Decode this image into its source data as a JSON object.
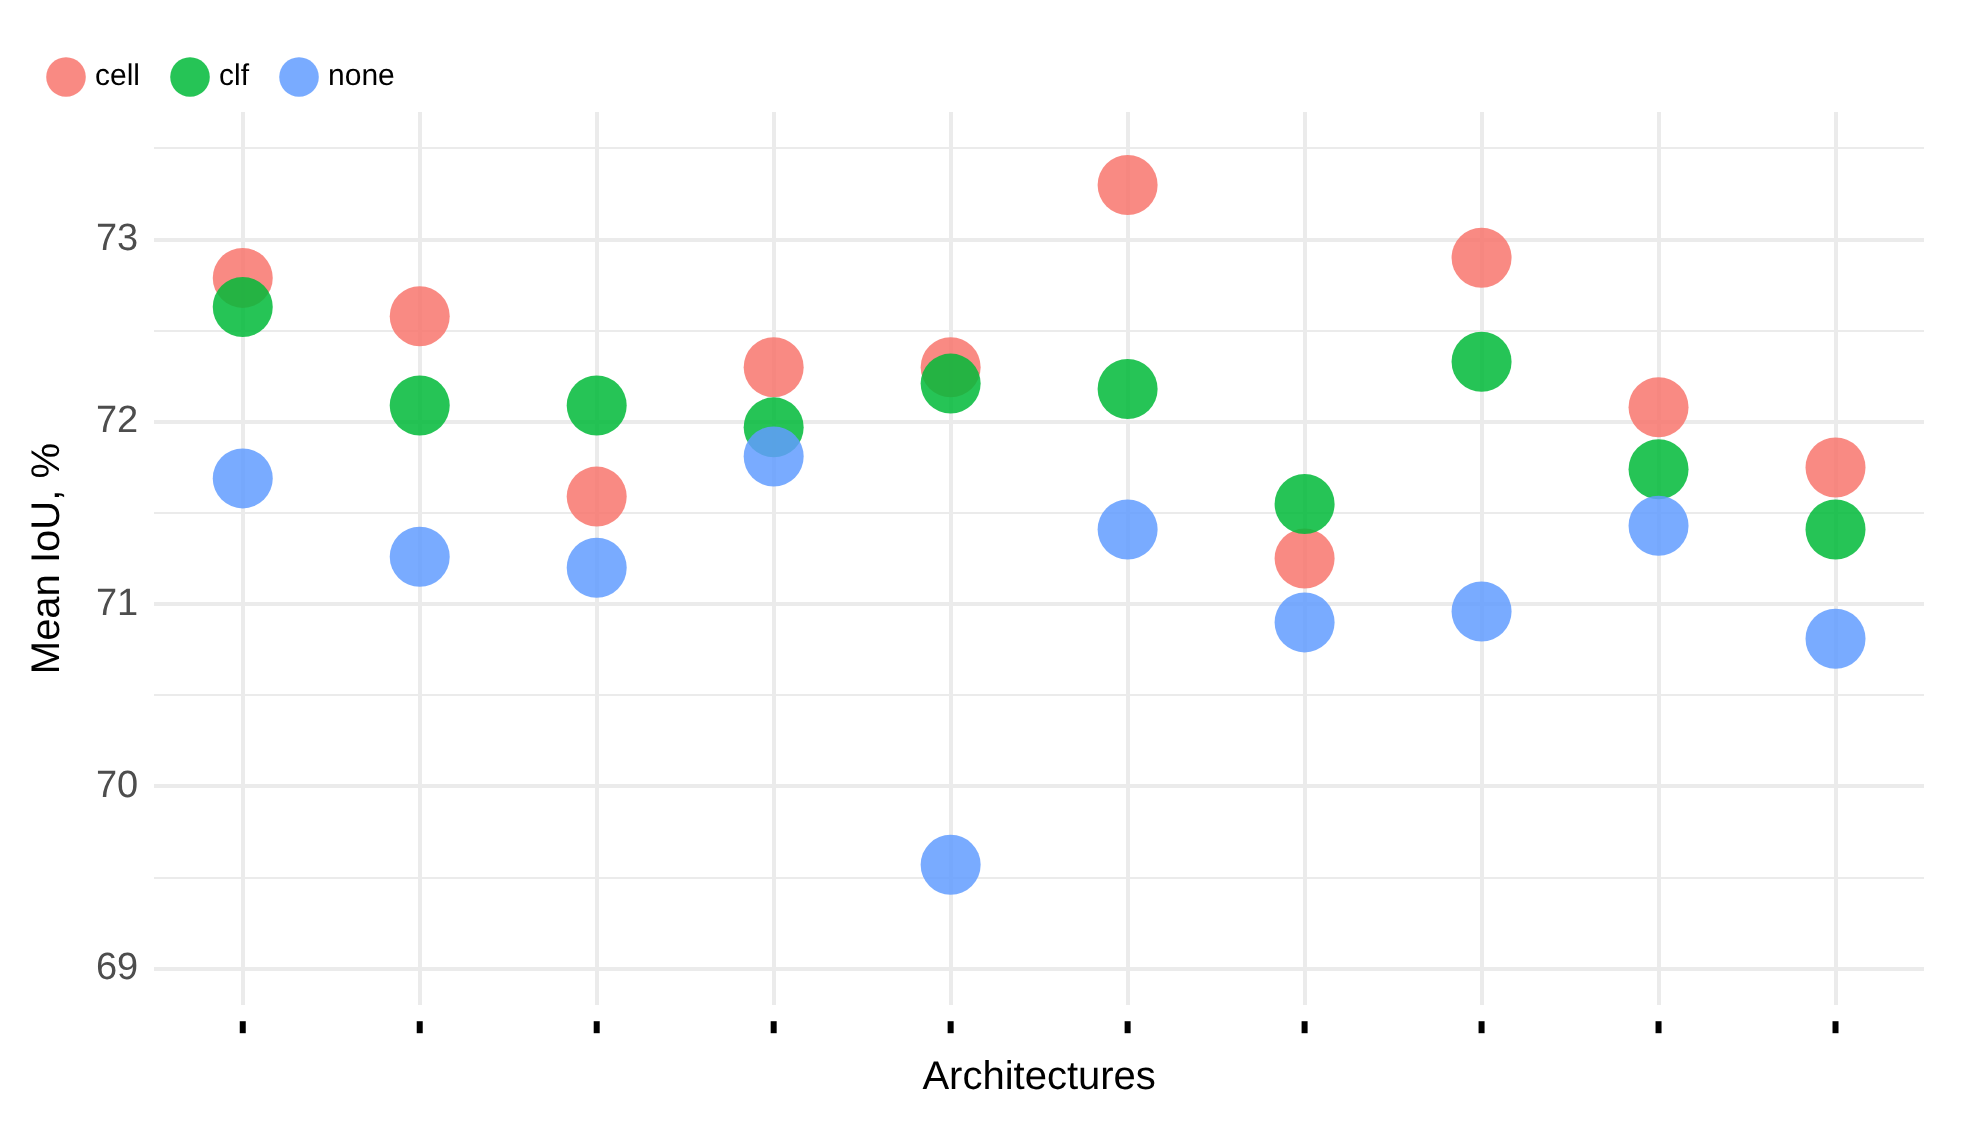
{
  "chart_data": {
    "type": "scatter",
    "xlabel": "Architectures",
    "ylabel": "Mean IoU, %",
    "categories": [
      null,
      null,
      null,
      null,
      null,
      null,
      null,
      null,
      null,
      null
    ],
    "series": [
      {
        "name": "cell",
        "color": "#f8766d",
        "values": [
          72.79,
          72.58,
          71.59,
          72.3,
          72.3,
          73.3,
          71.25,
          72.9,
          72.08,
          71.75
        ]
      },
      {
        "name": "clf",
        "color": "#00ba38",
        "values": [
          72.63,
          72.09,
          72.09,
          71.97,
          72.21,
          72.18,
          71.55,
          72.33,
          71.74,
          71.41
        ]
      },
      {
        "name": "none",
        "color": "#619cff",
        "values": [
          71.69,
          71.26,
          71.2,
          71.81,
          69.57,
          71.41,
          70.9,
          70.96,
          71.43,
          70.81
        ]
      }
    ],
    "ylim": [
      68.8,
      73.7
    ],
    "yticks": [
      69,
      {
        "value": 69.5,
        "label": null
      },
      70,
      {
        "value": 70.5,
        "label": null
      },
      71,
      {
        "value": 71.5,
        "label": null
      },
      72,
      {
        "value": 72.5,
        "label": null
      },
      73,
      {
        "value": 73.5,
        "label": null
      }
    ],
    "grid": true,
    "legend": "top left",
    "marker": "circle"
  }
}
